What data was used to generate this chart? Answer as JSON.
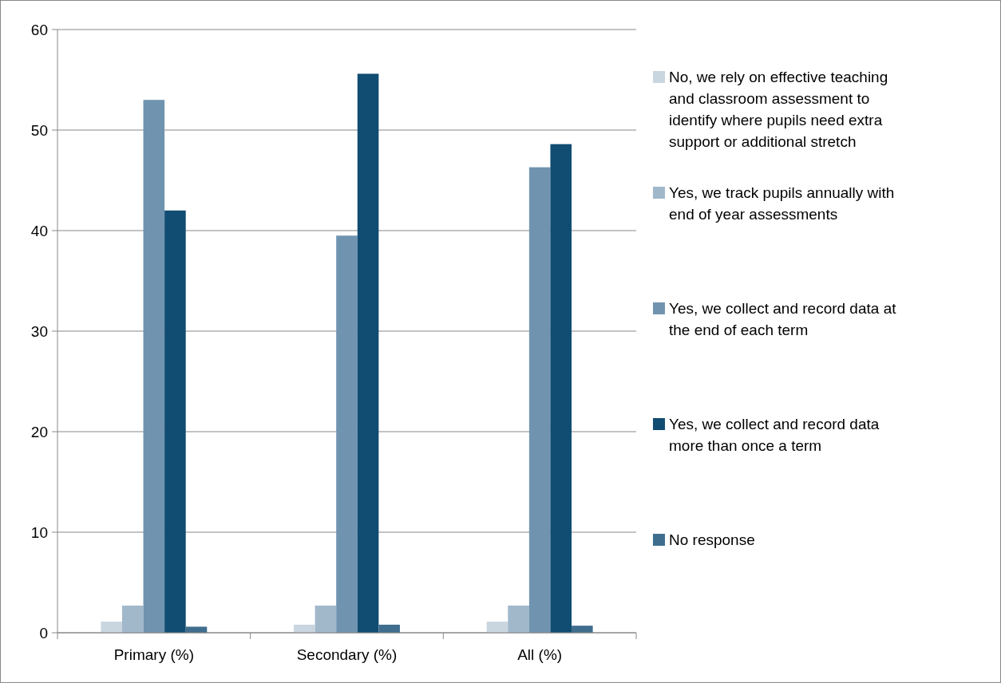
{
  "chart_data": {
    "type": "bar",
    "categories": [
      "Primary (%)",
      "Secondary (%)",
      "All (%)"
    ],
    "series": [
      {
        "name": "No, we rely on effective teaching and classroom assessment to identify where pupils need extra support or additional stretch",
        "color": "#c9d6e0",
        "values": [
          1.1,
          0.8,
          1.1
        ]
      },
      {
        "name": "Yes, we track pupils annually with end of year assessments",
        "color": "#a1b8cb",
        "values": [
          2.7,
          2.7,
          2.7
        ]
      },
      {
        "name": "Yes, we collect and record data at the end of each term",
        "color": "#7094b0",
        "values": [
          53,
          39.5,
          46.3
        ]
      },
      {
        "name": "Yes, we collect and record data more than once a term",
        "color": "#114c72",
        "values": [
          42,
          55.6,
          48.6
        ]
      },
      {
        "name": "No response",
        "color": "#3f6d8e",
        "values": [
          0.6,
          0.8,
          0.7
        ]
      }
    ],
    "ylim": [
      0,
      60
    ],
    "yticks": [
      0,
      10,
      20,
      30,
      40,
      50,
      60
    ],
    "grid": "y",
    "legend": "right"
  }
}
